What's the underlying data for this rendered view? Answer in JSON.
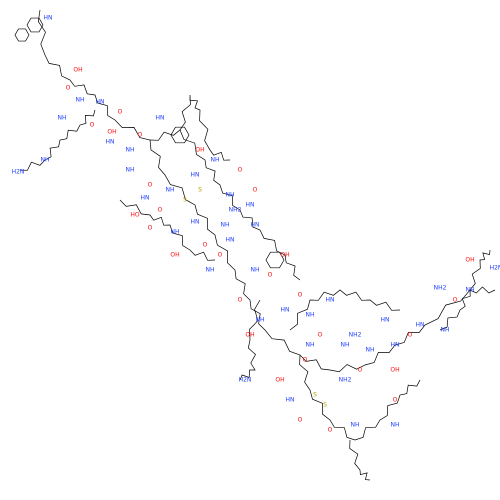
{
  "structure": {
    "atoms": [
      "HN",
      "OH",
      "O",
      "NH",
      "HN",
      "NH",
      "H2N",
      "NH",
      "O",
      "O",
      "HN",
      "NH",
      "OH",
      "O",
      "HN",
      "NH",
      "O",
      "NH",
      "HN",
      "O",
      "S",
      "S",
      "HO",
      "O",
      "NH",
      "HN",
      "O",
      "OH",
      "NH",
      "O",
      "HN",
      "NH2",
      "NH",
      "HN",
      "O",
      "OH",
      "NH",
      "HN",
      "O",
      "NH",
      "HN",
      "OH",
      "O",
      "NH",
      "O",
      "OH",
      "H2N",
      "NH",
      "HN",
      "S",
      "S",
      "NH2",
      "O",
      "NH",
      "HN",
      "O",
      "NH",
      "HN",
      "NH2",
      "NH",
      "O",
      "HN",
      "OH",
      "O",
      "HN",
      "NH",
      "O",
      "OH",
      "NH",
      "H2N",
      "NH2",
      "NH",
      "O",
      "O",
      "HN",
      "OH",
      "O",
      "NH",
      "NH",
      "O"
    ]
  }
}
